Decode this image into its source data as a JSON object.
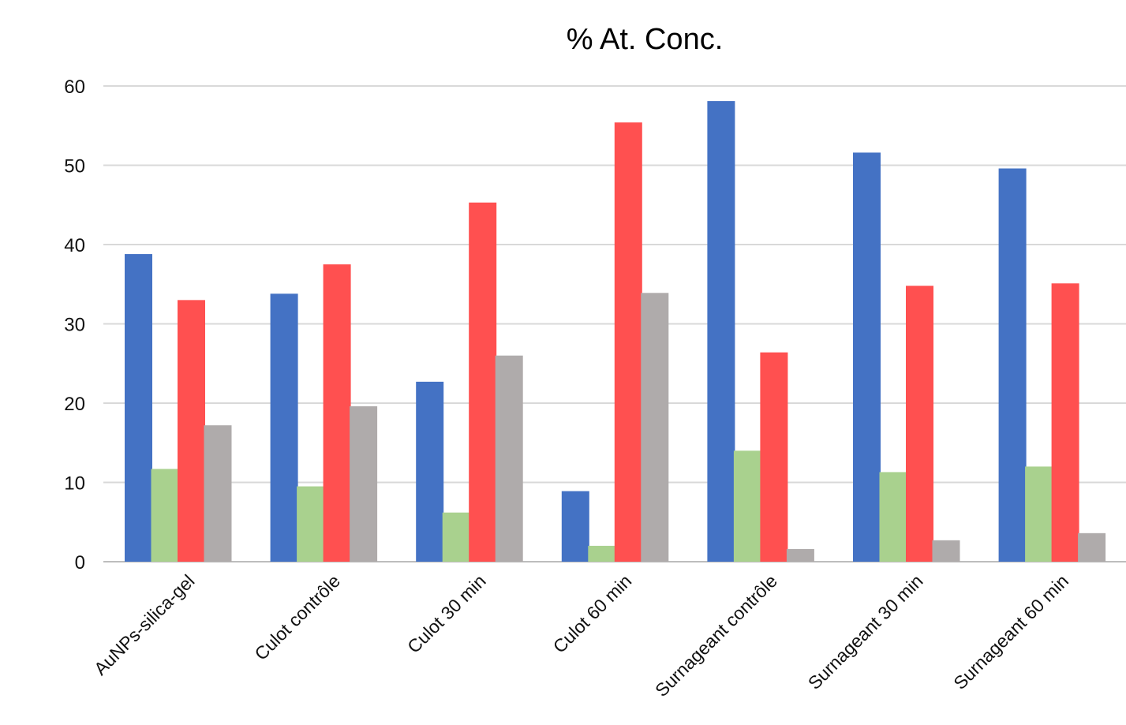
{
  "chart_data": {
    "type": "bar",
    "title": "% At. Conc.",
    "xlabel": "",
    "ylabel": "",
    "ylim": [
      0,
      60
    ],
    "yticks": [
      0,
      10,
      20,
      30,
      40,
      50,
      60
    ],
    "grid": true,
    "legend": "none",
    "categories": [
      "AuNPs-silica-gel",
      "Culot contrôle",
      "Culot 30 min",
      "Culot 60 min",
      "Surnageant contrôle",
      "Surnageant 30 min",
      "Surnageant 60 min"
    ],
    "series": [
      {
        "color": "#4472c4",
        "values": [
          38.8,
          33.8,
          22.7,
          8.9,
          58.1,
          51.6,
          49.6
        ]
      },
      {
        "color": "#a9d18e",
        "values": [
          11.7,
          9.5,
          6.2,
          2.0,
          14.0,
          11.3,
          12.0
        ]
      },
      {
        "color": "#ff5050",
        "values": [
          33.0,
          37.5,
          45.3,
          55.4,
          26.4,
          34.8,
          35.1
        ]
      },
      {
        "color": "#afabab",
        "values": [
          17.2,
          19.6,
          26.0,
          33.9,
          1.6,
          2.7,
          3.6
        ]
      }
    ]
  }
}
